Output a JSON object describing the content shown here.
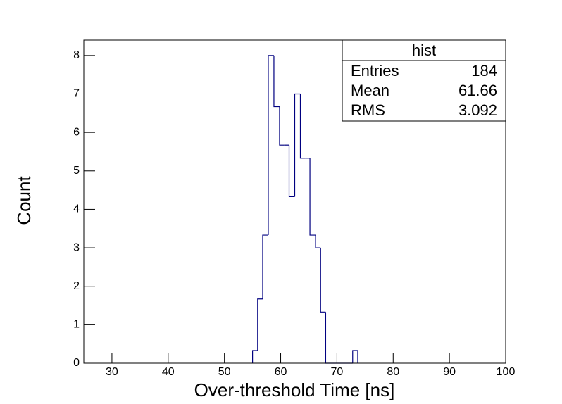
{
  "chart_data": {
    "type": "histogram",
    "x_label": "Over-threshold Time [ns]",
    "y_label": "Count",
    "bins": [
      55.0,
      55.9,
      56.8,
      57.8,
      58.8,
      59.8,
      60.6,
      61.5,
      62.5,
      63.5,
      64.4,
      65.2,
      66.2,
      67.1,
      68.0,
      72.8,
      73.7
    ],
    "values": [
      0.33,
      1.67,
      3.33,
      8,
      6.67,
      5.67,
      5.67,
      4.33,
      7,
      5.33,
      5.33,
      3.33,
      3,
      1.33,
      0,
      0.33
    ],
    "color": "#000080",
    "xlim": [
      25,
      100
    ],
    "ylim": [
      0,
      8.4
    ],
    "xticks": [
      30,
      40,
      50,
      60,
      70,
      80,
      90,
      100
    ],
    "yticks": [
      0,
      1,
      2,
      3,
      4,
      5,
      6,
      7,
      8
    ],
    "stats": {
      "title": "hist",
      "rows": [
        [
          "Entries",
          "184"
        ],
        [
          "Mean",
          "61.66"
        ],
        [
          "RMS",
          "3.092"
        ]
      ]
    }
  }
}
